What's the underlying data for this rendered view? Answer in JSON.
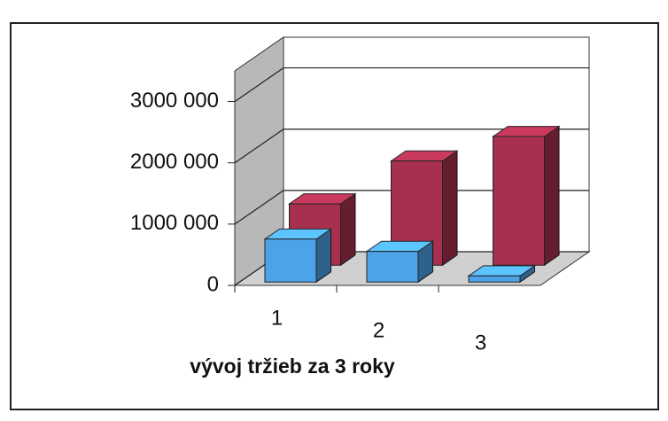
{
  "chart_data": {
    "type": "bar3d",
    "xlabel": "vývoj tržieb za 3 roky",
    "categories": [
      "1",
      "2",
      "3"
    ],
    "series": [
      {
        "color": "#4da3e8",
        "values": [
          700000,
          500000,
          100000
        ]
      },
      {
        "color": "#a8304f",
        "values": [
          1000000,
          1700000,
          2100000
        ]
      }
    ],
    "ylim": [
      0,
      3500000
    ],
    "yticks": [
      0,
      {
        "value": 1000000,
        "label": "1000 000"
      },
      {
        "value": 2000000,
        "label": "2000 000"
      },
      {
        "value": 3000000,
        "label": "3000 000"
      }
    ],
    "grid": true
  }
}
